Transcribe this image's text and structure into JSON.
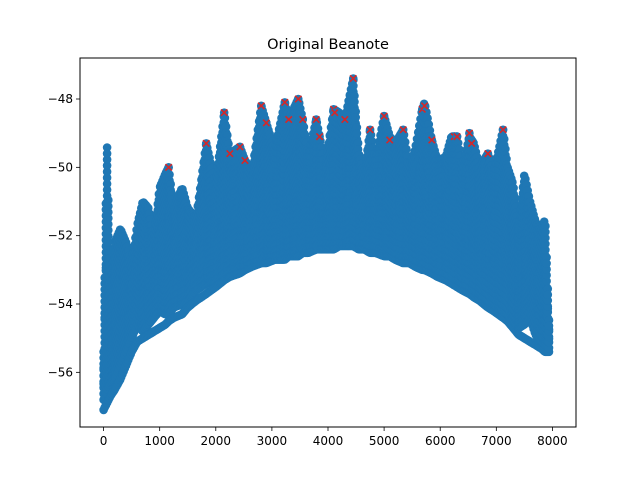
{
  "chart_data": {
    "type": "scatter",
    "title": "Original Beanote",
    "xlabel": "",
    "ylabel": "",
    "xlim": [
      -420,
      8420
    ],
    "ylim": [
      -57.6,
      -46.8
    ],
    "xticks": [
      0,
      1000,
      2000,
      3000,
      4000,
      5000,
      6000,
      7000,
      8000
    ],
    "yticks": [
      -56,
      -54,
      -52,
      -50,
      -48
    ],
    "grid": false,
    "colors": {
      "points": "#1f77b4",
      "peaks": "#d62728"
    },
    "series": [
      {
        "marker": "circle",
        "envelope": {
          "x": [
            0,
            60,
            120,
            200,
            300,
            400,
            500,
            600,
            700,
            800,
            900,
            1000,
            1100,
            1160,
            1250,
            1400,
            1500,
            1650,
            1830,
            2000,
            2150,
            2250,
            2430,
            2520,
            2650,
            2810,
            2900,
            3050,
            3230,
            3300,
            3470,
            3550,
            3650,
            3790,
            3850,
            3950,
            4100,
            4200,
            4300,
            4450,
            4550,
            4650,
            4750,
            4850,
            5000,
            5100,
            5200,
            5340,
            5450,
            5550,
            5680,
            5720,
            5850,
            5950,
            6100,
            6200,
            6300,
            6400,
            6520,
            6600,
            6700,
            6850,
            6950,
            7120,
            7200,
            7300,
            7400,
            7500,
            7600,
            7700,
            7800,
            7870,
            7950
          ],
          "top": [
            -55.4,
            -49.2,
            -53.6,
            -52.2,
            -51.8,
            -52.2,
            -52.8,
            -51.7,
            -51.0,
            -51.2,
            -52.0,
            -50.6,
            -50.2,
            -50.0,
            -51.2,
            -50.6,
            -51.2,
            -51.5,
            -49.3,
            -50.5,
            -48.4,
            -49.6,
            -49.4,
            -49.8,
            -50.1,
            -48.2,
            -48.7,
            -49.5,
            -48.1,
            -48.6,
            -48.0,
            -48.6,
            -49.7,
            -48.6,
            -49.1,
            -50.0,
            -48.3,
            -48.4,
            -48.6,
            -47.4,
            -49.6,
            -50.2,
            -48.9,
            -49.8,
            -48.5,
            -49.1,
            -49.3,
            -48.9,
            -50.0,
            -49.5,
            -48.3,
            -48.1,
            -49.2,
            -49.8,
            -49.7,
            -49.1,
            -49.1,
            -50.0,
            -49.1,
            -49.3,
            -50.0,
            -49.6,
            -50.2,
            -48.9,
            -50.0,
            -50.5,
            -51.8,
            -50.2,
            -51.0,
            -51.6,
            -51.9,
            -51.5,
            -55.0
          ],
          "base": [
            -56.8,
            -56.5,
            -56.3,
            -56.2,
            -55.8,
            -55.4,
            -55.0,
            -54.6,
            -54.8,
            -54.6,
            -54.4,
            -54.2,
            -54.3,
            -54.3,
            -54.1,
            -54.0,
            -53.9,
            -53.6,
            -53.4,
            -53.3,
            -53.1,
            -53.0,
            -52.9,
            -52.9,
            -52.8,
            -52.7,
            -52.6,
            -52.6,
            -52.5,
            -52.5,
            -52.4,
            -52.4,
            -52.3,
            -52.3,
            -52.2,
            -52.2,
            -52.2,
            -52.2,
            -52.2,
            -52.1,
            -52.2,
            -52.2,
            -52.3,
            -52.3,
            -52.4,
            -52.4,
            -52.5,
            -52.6,
            -52.6,
            -52.7,
            -52.8,
            -52.8,
            -52.9,
            -53.0,
            -53.1,
            -53.2,
            -53.3,
            -53.4,
            -53.5,
            -53.6,
            -53.7,
            -53.9,
            -54.0,
            -54.2,
            -54.3,
            -54.5,
            -54.7,
            -54.6,
            -54.4,
            -54.9,
            -55.1,
            -55.2,
            -55.3
          ],
          "bottom": [
            -57.1,
            -56.9,
            -56.7,
            -56.5,
            -56.2,
            -55.8,
            -55.4,
            -55.1,
            -55.0,
            -54.9,
            -54.8,
            -54.7,
            -54.6,
            -54.5,
            -54.4,
            -54.3,
            -54.1,
            -53.9,
            -53.7,
            -53.5,
            -53.3,
            -53.2,
            -53.1,
            -53.0,
            -52.9,
            -52.8,
            -52.8,
            -52.7,
            -52.7,
            -52.6,
            -52.6,
            -52.5,
            -52.5,
            -52.4,
            -52.4,
            -52.4,
            -52.4,
            -52.3,
            -52.3,
            -52.3,
            -52.4,
            -52.4,
            -52.5,
            -52.5,
            -52.6,
            -52.6,
            -52.7,
            -52.8,
            -52.8,
            -52.9,
            -53.0,
            -53.0,
            -53.1,
            -53.2,
            -53.3,
            -53.4,
            -53.5,
            -53.6,
            -53.7,
            -53.8,
            -53.9,
            -54.1,
            -54.2,
            -54.4,
            -54.5,
            -54.7,
            -54.9,
            -55.0,
            -55.1,
            -55.2,
            -55.3,
            -55.4,
            -55.4
          ]
        },
        "points_per_column": 3,
        "column_step": 21
      },
      {
        "marker": "x",
        "x": [
          1160,
          1830,
          2150,
          2250,
          2430,
          2520,
          2810,
          2900,
          3230,
          3300,
          3470,
          3550,
          3790,
          3850,
          4100,
          4120,
          4300,
          4450,
          4750,
          5000,
          5100,
          5340,
          5680,
          5720,
          5850,
          6250,
          6300,
          6520,
          6560,
          6850,
          7120
        ],
        "y": [
          -50.0,
          -49.3,
          -48.4,
          -49.6,
          -49.4,
          -49.8,
          -48.2,
          -48.7,
          -48.1,
          -48.6,
          -48.0,
          -48.6,
          -48.6,
          -49.1,
          -48.3,
          -48.4,
          -48.6,
          -47.4,
          -48.9,
          -48.5,
          -49.2,
          -48.9,
          -48.3,
          -48.2,
          -49.2,
          -49.1,
          -49.1,
          -49.0,
          -49.3,
          -49.6,
          -48.9
        ]
      }
    ]
  }
}
